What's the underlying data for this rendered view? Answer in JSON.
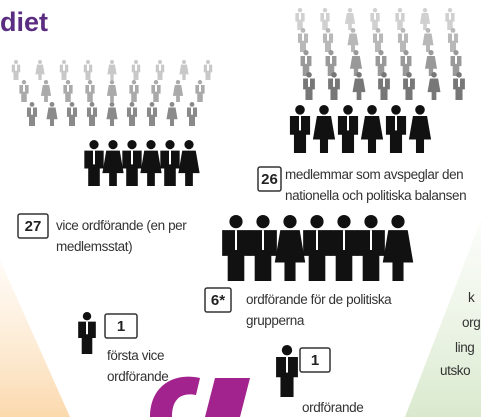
{
  "header": {
    "title": "diet"
  },
  "groups": [
    {
      "count": "27",
      "lines": [
        "vice ordförande (en per",
        "medlemsstat)"
      ]
    },
    {
      "count": "26",
      "lines": [
        "medlemmar som avspeglar den",
        "nationella och politiska balansen"
      ]
    },
    {
      "count": "6*",
      "lines": [
        "ordförande för de politiska",
        "grupperna"
      ]
    },
    {
      "count": "1",
      "lines": [
        "första vice",
        "ordförande"
      ]
    },
    {
      "count": "1",
      "lines": [
        "ordförande"
      ]
    }
  ],
  "side_text": [
    "k",
    "org",
    "ling",
    "utsko"
  ]
}
